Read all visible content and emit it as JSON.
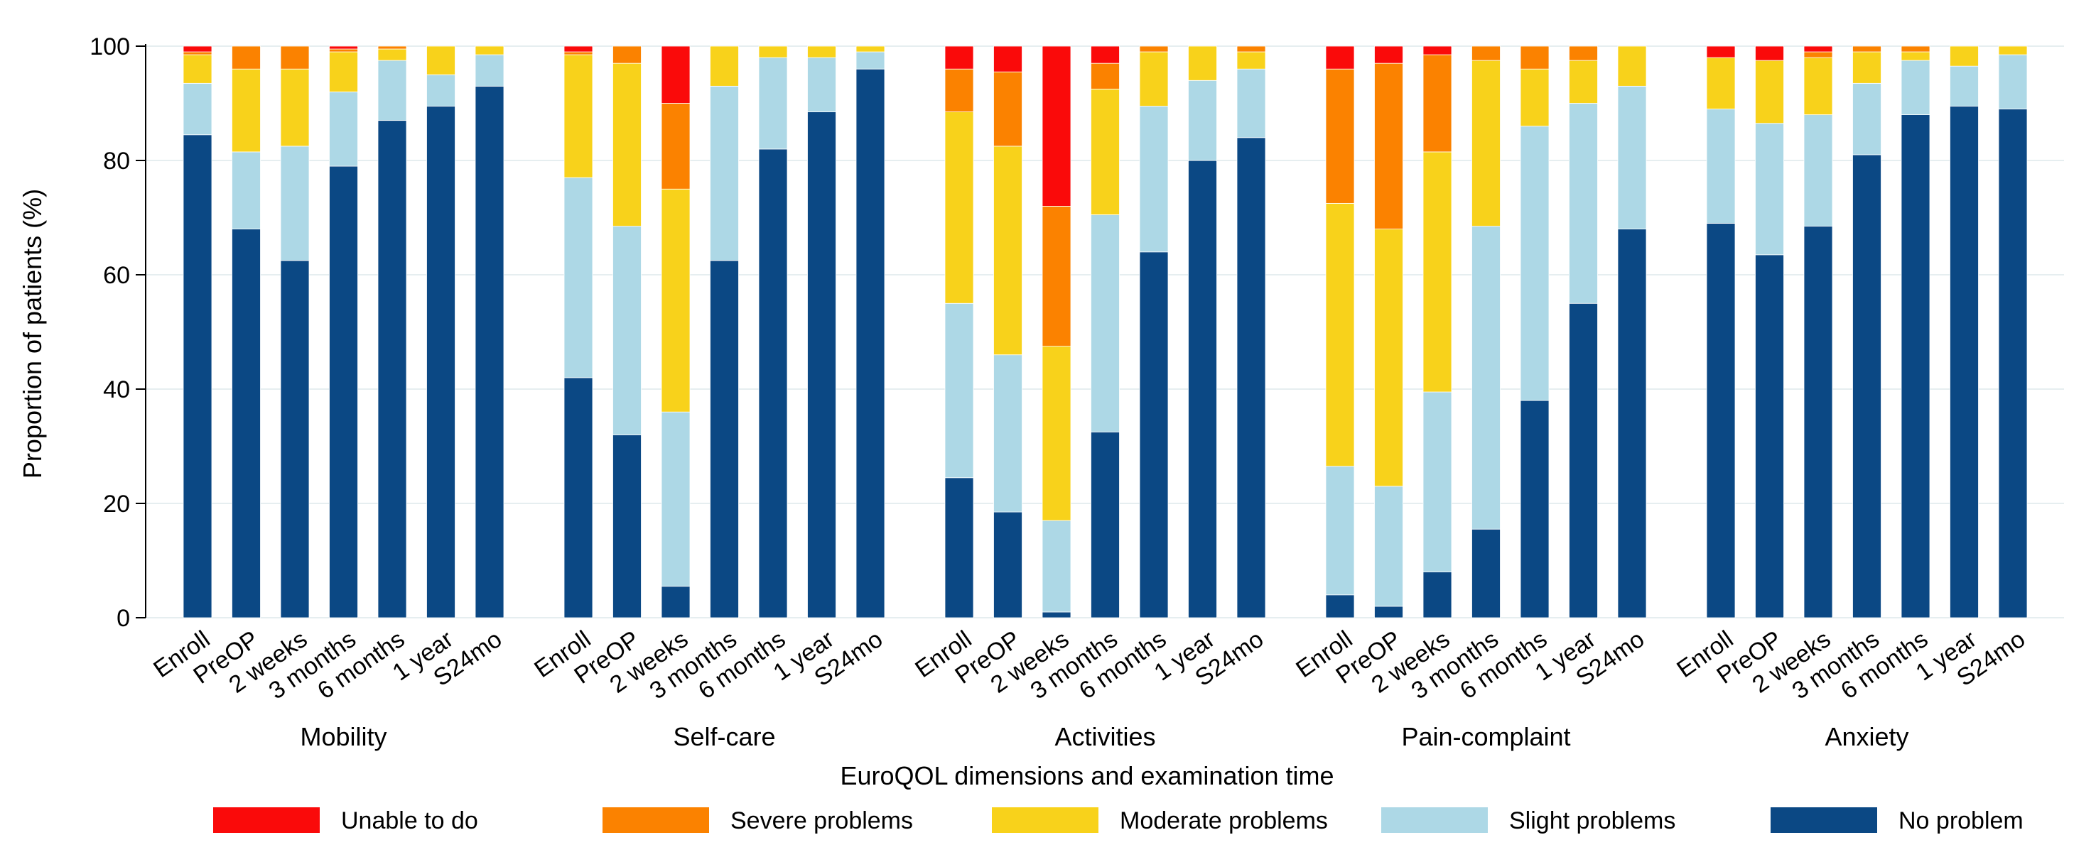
{
  "chart_data": {
    "type": "bar",
    "stacked": true,
    "ylabel": "Proportion of patients (%)",
    "xlabel": "EuroQOL dimensions and examination time",
    "ylim": [
      0,
      100
    ],
    "yticks": [
      "0",
      "20",
      "40",
      "60",
      "80",
      "100"
    ],
    "grid": true,
    "legend_position": "bottom",
    "categories": [
      "Enroll",
      "PreOP",
      "2 weeks",
      "3 months",
      "6 months",
      "1 year",
      "S24mo"
    ],
    "groups": [
      {
        "name": "Mobility",
        "bars": [
          {
            "category": "Enroll",
            "values": [
              84.5,
              9.0,
              5.0,
              0.5,
              1.0
            ]
          },
          {
            "category": "PreOP",
            "values": [
              68.0,
              13.5,
              14.5,
              4.0,
              0.0
            ]
          },
          {
            "category": "2 weeks",
            "values": [
              62.5,
              20.0,
              13.5,
              4.0,
              0.0
            ]
          },
          {
            "category": "3 months",
            "values": [
              79.0,
              13.0,
              7.0,
              0.5,
              0.5
            ]
          },
          {
            "category": "6 months",
            "values": [
              87.0,
              10.5,
              2.0,
              0.5,
              0.0
            ]
          },
          {
            "category": "1 year",
            "values": [
              89.5,
              5.5,
              5.0,
              0.0,
              0.0
            ]
          },
          {
            "category": "S24mo",
            "values": [
              93.0,
              5.5,
              1.5,
              0.0,
              0.0
            ]
          }
        ]
      },
      {
        "name": "Self-care",
        "bars": [
          {
            "category": "Enroll",
            "values": [
              42.0,
              35.0,
              21.5,
              0.5,
              1.0
            ]
          },
          {
            "category": "PreOP",
            "values": [
              32.0,
              36.5,
              28.5,
              3.0,
              0.0
            ]
          },
          {
            "category": "2 weeks",
            "values": [
              5.5,
              30.5,
              39.0,
              15.0,
              10.0
            ]
          },
          {
            "category": "3 months",
            "values": [
              62.5,
              30.5,
              7.0,
              0.0,
              0.0
            ]
          },
          {
            "category": "6 months",
            "values": [
              82.0,
              16.0,
              2.0,
              0.0,
              0.0
            ]
          },
          {
            "category": "1 year",
            "values": [
              88.5,
              9.5,
              2.0,
              0.0,
              0.0
            ]
          },
          {
            "category": "S24mo",
            "values": [
              96.0,
              3.0,
              1.0,
              0.0,
              0.0
            ]
          }
        ]
      },
      {
        "name": "Activities",
        "bars": [
          {
            "category": "Enroll",
            "values": [
              24.5,
              30.5,
              33.5,
              7.5,
              4.0
            ]
          },
          {
            "category": "PreOP",
            "values": [
              18.5,
              27.5,
              36.5,
              13.0,
              4.5
            ]
          },
          {
            "category": "2 weeks",
            "values": [
              1.0,
              16.0,
              30.5,
              24.5,
              28.0
            ]
          },
          {
            "category": "3 months",
            "values": [
              32.5,
              38.0,
              22.0,
              4.5,
              3.0
            ]
          },
          {
            "category": "6 months",
            "values": [
              64.0,
              25.5,
              9.5,
              1.0,
              0.0
            ]
          },
          {
            "category": "1 year",
            "values": [
              80.0,
              14.0,
              6.0,
              0.0,
              0.0
            ]
          },
          {
            "category": "S24mo",
            "values": [
              84.0,
              12.0,
              3.0,
              1.0,
              0.0
            ]
          }
        ]
      },
      {
        "name": "Pain-complaint",
        "bars": [
          {
            "category": "Enroll",
            "values": [
              4.0,
              22.5,
              46.0,
              23.5,
              4.0
            ]
          },
          {
            "category": "PreOP",
            "values": [
              2.0,
              21.0,
              45.0,
              29.0,
              3.0
            ]
          },
          {
            "category": "2 weeks",
            "values": [
              8.0,
              31.5,
              42.0,
              17.0,
              1.5
            ]
          },
          {
            "category": "3 months",
            "values": [
              15.5,
              53.0,
              29.0,
              2.5,
              0.0
            ]
          },
          {
            "category": "6 months",
            "values": [
              38.0,
              48.0,
              10.0,
              4.0,
              0.0
            ]
          },
          {
            "category": "1 year",
            "values": [
              55.0,
              35.0,
              7.5,
              2.5,
              0.0
            ]
          },
          {
            "category": "S24mo",
            "values": [
              68.0,
              25.0,
              7.0,
              0.0,
              0.0
            ]
          }
        ]
      },
      {
        "name": "Anxiety",
        "bars": [
          {
            "category": "Enroll",
            "values": [
              69.0,
              20.0,
              9.0,
              0.0,
              2.0
            ]
          },
          {
            "category": "PreOP",
            "values": [
              63.5,
              23.0,
              11.0,
              0.0,
              2.5
            ]
          },
          {
            "category": "2 weeks",
            "values": [
              68.5,
              19.5,
              10.0,
              1.0,
              1.0
            ]
          },
          {
            "category": "3 months",
            "values": [
              81.0,
              12.5,
              5.5,
              1.0,
              0.0
            ]
          },
          {
            "category": "6 months",
            "values": [
              88.0,
              9.5,
              1.5,
              1.0,
              0.0
            ]
          },
          {
            "category": "1 year",
            "values": [
              89.5,
              7.0,
              3.5,
              0.0,
              0.0
            ]
          },
          {
            "category": "S24mo",
            "values": [
              89.0,
              9.5,
              1.5,
              0.0,
              0.0
            ]
          }
        ]
      }
    ],
    "series": [
      {
        "name": "No problem",
        "color": "#0B4884"
      },
      {
        "name": "Slight problems",
        "color": "#ADD8E6"
      },
      {
        "name": "Moderate problems",
        "color": "#F8D21B"
      },
      {
        "name": "Severe problems",
        "color": "#FB8200"
      },
      {
        "name": "Unable to do",
        "color": "#FA0A0A"
      }
    ],
    "legend_order": [
      "Unable to do",
      "Severe problems",
      "Moderate problems",
      "Slight problems",
      "No problem"
    ]
  }
}
